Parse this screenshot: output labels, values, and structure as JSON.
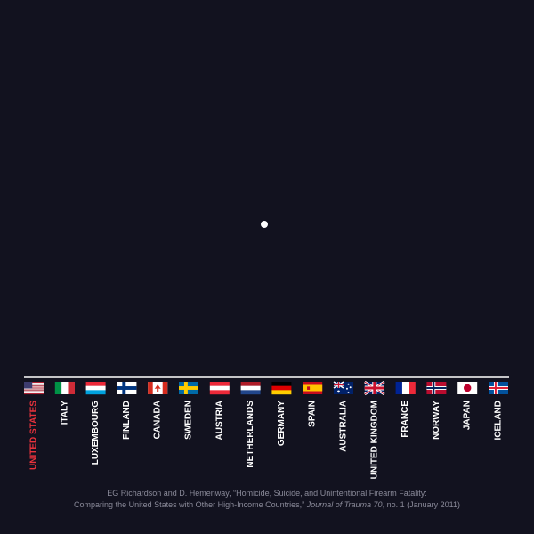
{
  "chart_data": {
    "type": "scatter",
    "categories": [
      {
        "name": "UNITED STATES",
        "flag": "us",
        "highlight": true
      },
      {
        "name": "ITALY",
        "flag": "it",
        "highlight": false
      },
      {
        "name": "LUXEMBOURG",
        "flag": "lu",
        "highlight": false
      },
      {
        "name": "FINLAND",
        "flag": "fi",
        "highlight": false
      },
      {
        "name": "CANADA",
        "flag": "ca",
        "highlight": false
      },
      {
        "name": "SWEDEN",
        "flag": "se",
        "highlight": false
      },
      {
        "name": "AUSTRIA",
        "flag": "at",
        "highlight": false
      },
      {
        "name": "NETHERLANDS",
        "flag": "nl",
        "highlight": false
      },
      {
        "name": "GERMANY",
        "flag": "de",
        "highlight": false
      },
      {
        "name": "SPAIN",
        "flag": "es",
        "highlight": false
      },
      {
        "name": "AUSTRALIA",
        "flag": "au",
        "highlight": false
      },
      {
        "name": "UNITED KINGDOM",
        "flag": "gb",
        "highlight": false
      },
      {
        "name": "FRANCE",
        "flag": "fr",
        "highlight": false
      },
      {
        "name": "NORWAY",
        "flag": "no",
        "highlight": false
      },
      {
        "name": "JAPAN",
        "flag": "jp",
        "highlight": false
      },
      {
        "name": "ICELAND",
        "flag": "is",
        "highlight": false
      }
    ],
    "points": [
      {
        "x": 0.5,
        "y": 0.5
      }
    ],
    "xlim": [
      0,
      1
    ],
    "ylim": [
      0,
      1
    ],
    "grid": false,
    "title": "",
    "xlabel": "",
    "ylabel": "",
    "colors": {
      "background": "#12121f",
      "axis": "#ffffff",
      "label": "#ffffff",
      "highlight": "#e8323c",
      "point": "#ffffff"
    }
  },
  "citation": {
    "line1": "EG Richardson and D. Hemenway, “Homicide, Suicide, and Unintentional Firearm Fatality:",
    "line2_before": "Comparing the United States with Other High-Income Countries,” ",
    "line2_journal": "Journal of Trauma 70",
    "line2_after": ", no. 1 (January 2011)"
  }
}
